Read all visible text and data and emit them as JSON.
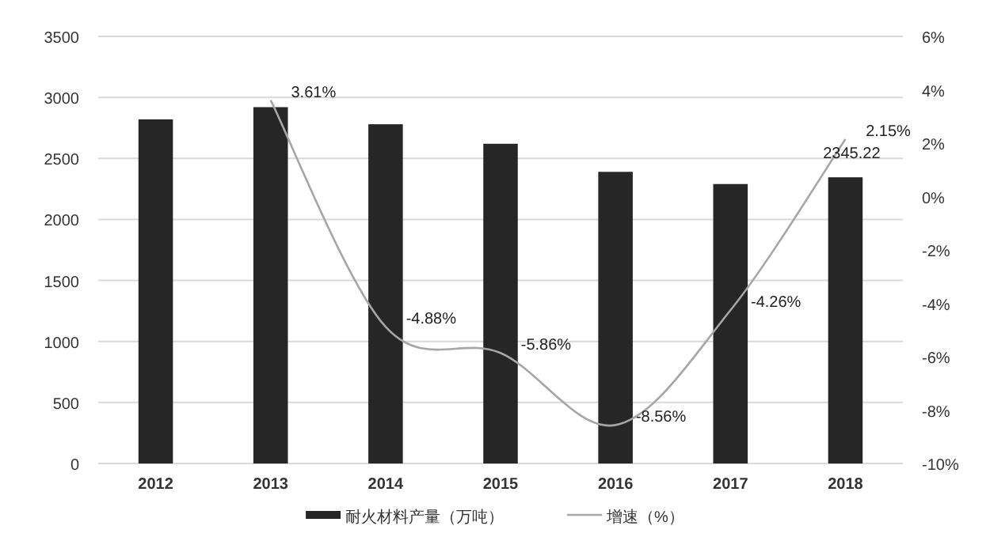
{
  "chart_data": {
    "type": "bar",
    "categories": [
      "2012",
      "2013",
      "2014",
      "2015",
      "2016",
      "2017",
      "2018"
    ],
    "series": [
      {
        "name": "耐火材料产量（万吨）",
        "color": "#262626",
        "values": [
          2820,
          2920,
          2780,
          2620,
          2390,
          2290,
          2345.22
        ],
        "value_labels": [
          null,
          null,
          null,
          null,
          null,
          null,
          "2345.22"
        ]
      },
      {
        "name": "增速（%）",
        "type": "line",
        "axis": "y2",
        "color": "#a6a6a6",
        "values": [
          null,
          3.61,
          -4.88,
          -5.86,
          -8.56,
          -4.26,
          2.15
        ],
        "value_labels": [
          null,
          "3.61%",
          "-4.88%",
          "-5.86%",
          "-8.56%",
          "-4.26%",
          "2.15%"
        ]
      }
    ],
    "ylim": [
      0,
      3500
    ],
    "yticks": [
      0,
      500,
      1000,
      1500,
      2000,
      2500,
      3000,
      3500
    ],
    "y2lim": [
      -10,
      6
    ],
    "y2ticks": [
      {
        "value": -10,
        "label": "-10%"
      },
      {
        "value": -8,
        "label": "-8%"
      },
      {
        "value": -6,
        "label": "-6%"
      },
      {
        "value": -4,
        "label": "-4%"
      },
      {
        "value": -2,
        "label": "-2%"
      },
      {
        "value": 0,
        "label": "0%"
      },
      {
        "value": 2,
        "label": "2%"
      },
      {
        "value": 4,
        "label": "4%"
      },
      {
        "value": 6,
        "label": "6%"
      }
    ],
    "grid": "y",
    "legend": "bottom",
    "marker": "none"
  }
}
